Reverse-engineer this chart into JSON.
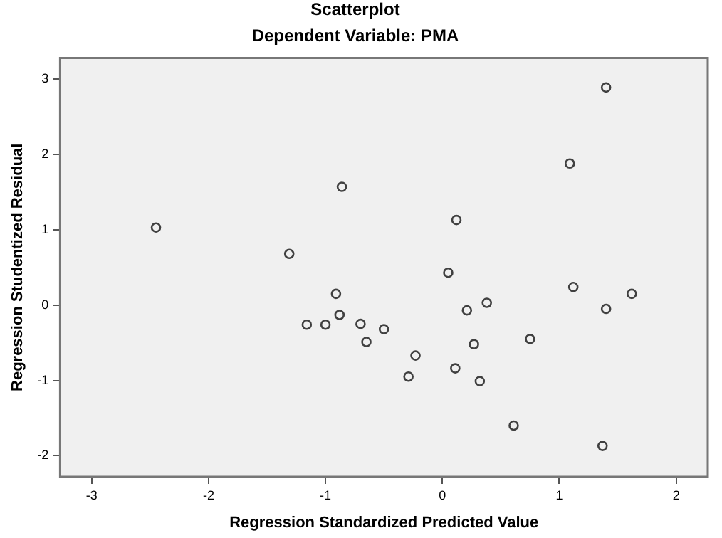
{
  "chart_data": {
    "type": "scatter",
    "title": "Scatterplot",
    "subtitle": "Dependent Variable: PMA",
    "xlabel": "Regression Standardized Predicted Value",
    "ylabel": "Regression Studentized Residual",
    "xlim": [
      -3.27,
      2.27
    ],
    "ylim": [
      -2.28,
      3.28
    ],
    "xticks": [
      -3,
      -2,
      -1,
      0,
      1,
      2
    ],
    "yticks": [
      -2,
      -1,
      0,
      1,
      2,
      3
    ],
    "grid": false,
    "legend": false,
    "marker": "circle",
    "series": [
      {
        "color": "#404040",
        "x": [
          -2.45,
          -1.31,
          -0.86,
          -0.91,
          -0.88,
          -1.16,
          -1.0,
          -0.7,
          -0.5,
          -0.65,
          -0.23,
          -0.29,
          0.12,
          0.05,
          0.21,
          0.38,
          0.27,
          0.11,
          0.32,
          0.75,
          0.61,
          1.09,
          1.12,
          1.4,
          1.4,
          1.62,
          1.37
        ],
        "values": [
          1.03,
          0.68,
          1.57,
          0.15,
          -0.13,
          -0.26,
          -0.26,
          -0.25,
          -0.32,
          -0.49,
          -0.67,
          -0.95,
          1.13,
          0.43,
          -0.07,
          0.03,
          -0.52,
          -0.84,
          -1.01,
          -0.45,
          -1.6,
          1.88,
          0.24,
          2.89,
          -0.05,
          0.15,
          -1.87
        ]
      }
    ]
  }
}
